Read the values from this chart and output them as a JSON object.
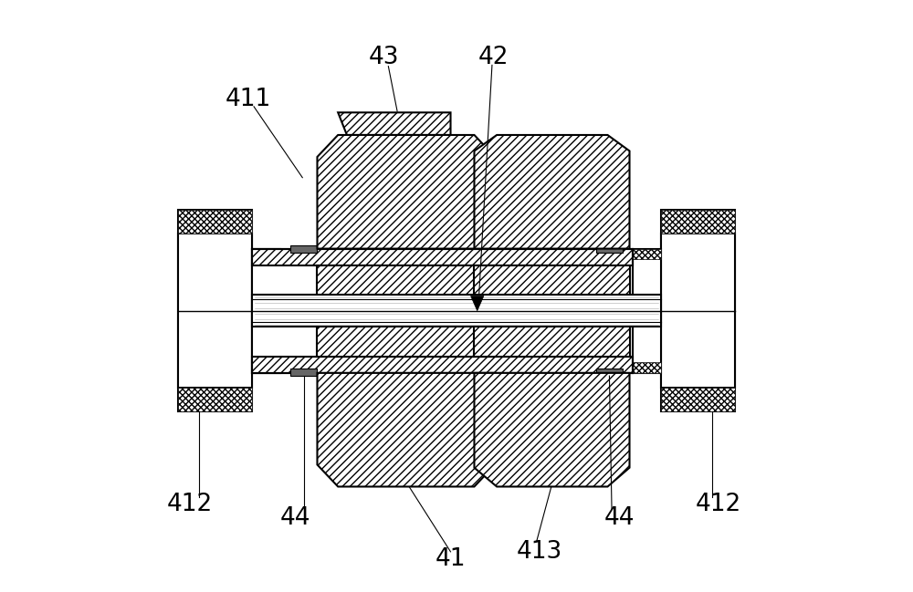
{
  "bg_color": "#ffffff",
  "line_color": "#000000",
  "figsize": [
    10.0,
    6.49
  ],
  "dpi": 100,
  "lw_main": 1.5,
  "lw_thin": 0.8,
  "lw_hatch": 0.5
}
